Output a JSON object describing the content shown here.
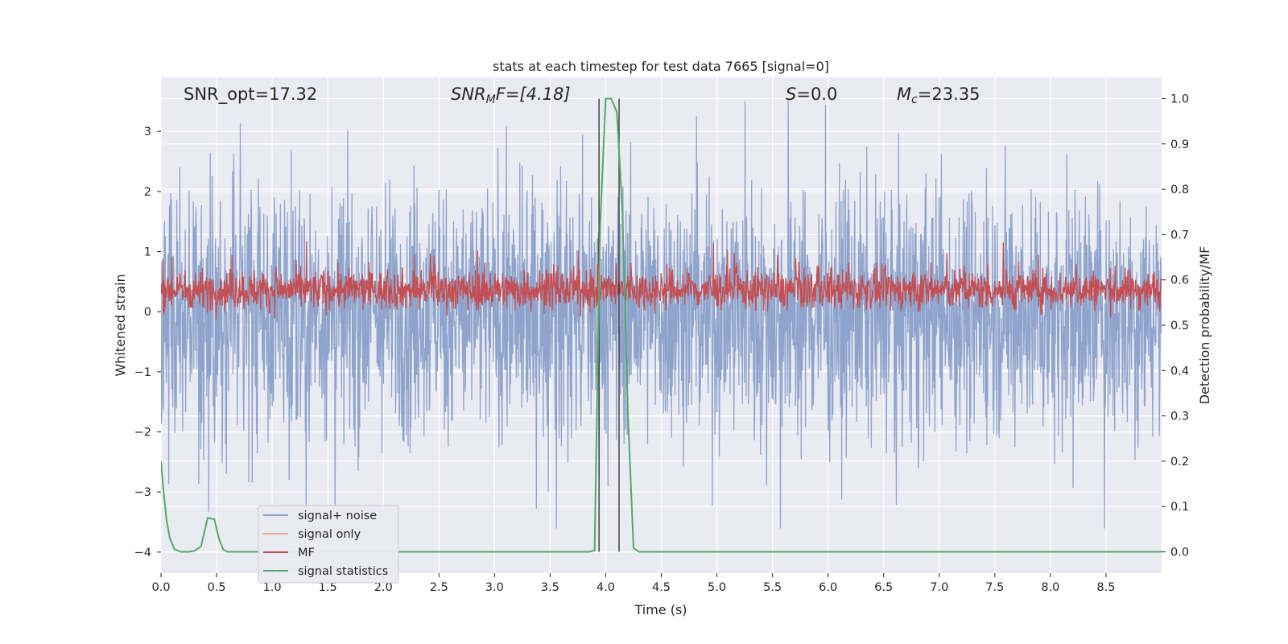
{
  "chart_data": {
    "type": "line",
    "title": "stats at each timestep for test data 7665 [signal=0]",
    "xlabel": "Time (s)",
    "ylabel_left": "Whitened strain",
    "ylabel_right": "Detection probability/MF",
    "xlim": [
      0,
      9.0
    ],
    "ylim_left": [
      -4.35,
      3.9
    ],
    "ylim_right": [
      -0.047,
      1.047
    ],
    "x_ticks": [
      "0.0",
      "0.5",
      "1.0",
      "1.5",
      "2.0",
      "2.5",
      "3.0",
      "3.5",
      "4.0",
      "4.5",
      "5.0",
      "5.5",
      "6.0",
      "6.5",
      "7.0",
      "7.5",
      "8.0",
      "8.5"
    ],
    "y_ticks_left": [
      "3",
      "2",
      "1",
      "0",
      "−1",
      "−2",
      "−3",
      "−4"
    ],
    "y_ticks_right": [
      "1.0",
      "0.9",
      "0.8",
      "0.7",
      "0.6",
      "0.5",
      "0.4",
      "0.3",
      "0.2",
      "0.1",
      "0.0"
    ],
    "grid": true,
    "annotations": [
      {
        "text": "SNR_opt=17.32"
      },
      {
        "base": "SNR",
        "sub": "M",
        "rest": "F=[4.18]"
      },
      {
        "base": "S",
        "rest": "=0.0"
      },
      {
        "base": "M",
        "sub": "c",
        "rest": "=23.35"
      }
    ],
    "vlines_x": [
      3.94,
      4.12
    ],
    "series": [
      {
        "name": "signal+ noise",
        "color": "#8fa4cc",
        "description_range": [
          -3.6,
          3.5
        ]
      },
      {
        "name": "signal only",
        "color": "#e8a98c"
      },
      {
        "name": "MF",
        "color": "#c44e52",
        "description_range": [
          0.0,
          1.0
        ]
      },
      {
        "name": "signal statistics",
        "color": "#55a868",
        "axis": "right",
        "x": [
          0.0,
          0.02,
          0.05,
          0.08,
          0.12,
          0.18,
          0.25,
          0.3,
          0.36,
          0.42,
          0.48,
          0.52,
          0.56,
          0.6,
          0.7,
          0.8,
          1.0,
          2.0,
          3.0,
          3.85,
          3.9,
          3.95,
          4.0,
          4.05,
          4.1,
          4.15,
          4.2,
          4.25,
          4.3,
          4.4,
          5.0,
          6.0,
          7.0,
          8.0,
          9.0
        ],
        "y": [
          0.2,
          0.14,
          0.07,
          0.03,
          0.006,
          0.0,
          0.0,
          0.002,
          0.012,
          0.075,
          0.072,
          0.03,
          0.005,
          0.0,
          0.0,
          0.0,
          0.0,
          0.0,
          0.0,
          0.0,
          0.003,
          0.72,
          1.0,
          1.0,
          0.97,
          0.75,
          0.3,
          0.008,
          0.0,
          0.0,
          0.0,
          0.0,
          0.0,
          0.0,
          0.0
        ]
      }
    ],
    "legend_position": "lower-left"
  }
}
